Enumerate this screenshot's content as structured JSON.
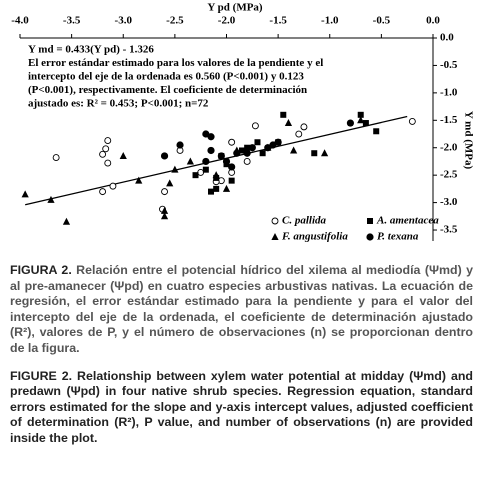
{
  "chart_data": {
    "type": "scatter",
    "x_label": "Y pd (MPa)",
    "y_label": "Y md (MPa)",
    "xlim": [
      -4,
      0
    ],
    "ylim": [
      -3.7,
      0
    ],
    "xticks": [
      {
        "value": -4,
        "label": "-4.0"
      },
      -3.5,
      {
        "value": -3,
        "label": "-3.0"
      },
      -2.5,
      {
        "value": -2,
        "label": "-2.0"
      },
      -1.5,
      {
        "value": -1,
        "label": "-1.0"
      },
      -0.5,
      {
        "value": 0,
        "label": "0.0"
      }
    ],
    "yticks": [
      {
        "value": 0,
        "label": "0.0"
      },
      -0.5,
      {
        "value": -1,
        "label": "-1.0"
      },
      -1.5,
      {
        "value": -2,
        "label": "-2.0"
      },
      -2.5,
      {
        "value": -3,
        "label": "-3.0"
      },
      -3.5
    ],
    "legend_position": "lower right",
    "annotation": [
      "Y md = 0.433(Y pd) - 1.326",
      "El error estándar estimado para los valores de la pendiente y el",
      "intercepto del eje de la ordenada es 0.560 (P<0.001) y 0.123",
      "(P<0.001), respectivamente. El coeficiente de determinación",
      "ajustado es: R² = 0.453; P<0.001; n=72"
    ],
    "trend_line": {
      "color": "#000000",
      "x": [
        -3.95,
        -0.25
      ],
      "y": [
        -3.04,
        -1.43
      ]
    },
    "series": [
      {
        "name": "C. pallida",
        "color": "#000000",
        "marker": "circle-open",
        "x": [
          -3.65,
          -3.15,
          -3.17,
          -3.2,
          -3.15,
          -3.2,
          -3.1,
          -2.6,
          -2.62,
          -2.25,
          -2.05,
          -1.95,
          -1.72,
          -1.8,
          -1.3,
          -1.25,
          -2.45,
          -1.95,
          -0.2,
          -2.1
        ],
        "values": [
          -2.18,
          -1.87,
          -2.02,
          -2.12,
          -2.28,
          -2.8,
          -2.7,
          -2.8,
          -3.12,
          -2.45,
          -2.6,
          -2.45,
          -1.6,
          -2.25,
          -1.75,
          -1.62,
          -2.05,
          -1.9,
          -1.52,
          -2.62
        ]
      },
      {
        "name": "A. amentacea",
        "color": "#000000",
        "marker": "square",
        "x": [
          -2.3,
          -2.1,
          -2.1,
          -1.95,
          -2.0,
          -2.05,
          -1.85,
          -1.8,
          -1.7,
          -1.65,
          -1.5,
          -1.45,
          -1.15,
          -0.7,
          -0.55,
          -0.65,
          -2.2,
          -2.15
        ],
        "values": [
          -2.5,
          -2.55,
          -2.75,
          -2.6,
          -2.3,
          -2.15,
          -2.05,
          -2.0,
          -1.9,
          -2.1,
          -1.9,
          -1.4,
          -2.1,
          -1.4,
          -1.7,
          -1.55,
          -2.4,
          -2.8
        ]
      },
      {
        "name": "F. angustifolia",
        "color": "#000000",
        "marker": "triangle",
        "x": [
          -3.95,
          -3.7,
          -3.55,
          -3.0,
          -2.85,
          -2.6,
          -2.6,
          -2.5,
          -2.35,
          -2.1,
          -2.0,
          -1.9,
          -1.6,
          -1.35,
          -1.4,
          -1.05,
          -0.7,
          -2.55
        ],
        "values": [
          -2.85,
          -2.95,
          -3.35,
          -2.15,
          -2.6,
          -3.15,
          -3.25,
          -2.4,
          -2.25,
          -2.5,
          -2.75,
          -2.05,
          -2.0,
          -2.05,
          -1.55,
          -2.1,
          -1.5,
          -2.65
        ]
      },
      {
        "name": "P. texana",
        "color": "#000000",
        "marker": "circle",
        "x": [
          -2.6,
          -2.45,
          -2.2,
          -2.15,
          -2.15,
          -2.05,
          -2.0,
          -1.9,
          -1.8,
          -1.75,
          -1.6,
          -1.55,
          -1.5,
          -0.8,
          -2.2,
          -1.95
        ],
        "values": [
          -2.15,
          -1.95,
          -1.75,
          -1.8,
          -2.05,
          -2.15,
          -2.25,
          -2.1,
          -2.1,
          -2.0,
          -2.0,
          -1.95,
          -1.9,
          -1.55,
          -2.25,
          -2.35
        ]
      }
    ]
  },
  "captions": [
    {
      "label": "FIGURA 2.",
      "text": "Relación entre el potencial hídrico del xilema al mediodía (Ψmd) y al pre-amanecer (Ψpd) en cuatro especies arbustivas nativas. La ecuación de regresión, el error estándar estimado para la pendiente y para el valor del intercepto del eje de la ordenada, el coeficiente de determinación ajustado (R²), valores de P, y el número de observaciones (n) se proporcionan dentro de la figura."
    },
    {
      "label": "FIGURE 2.",
      "text": "Relationship between xylem water potential at midday (Ψmd) and predawn (Ψpd) in four native shrub species. Regression equation, standard errors estimated for the slope and y-axis intercept values, adjusted coefficient of determination (R²), P value, and number of observations (n) are provided inside the plot."
    }
  ]
}
